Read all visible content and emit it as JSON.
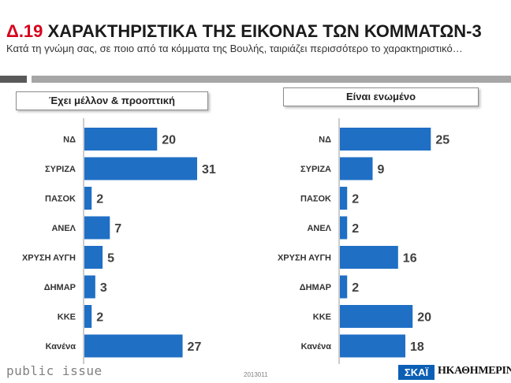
{
  "header": {
    "code": "Δ.19",
    "title": "ΧΑΡΑΚΤΗΡΙΣΤΙΚΑ ΤΗΣ ΕΙΚΟΝΑΣ ΤΩΝ ΚΟΜΜΑΤΩΝ-3",
    "subtitle": "Κατά τη γνώμη σας, σε ποιο από τα κόμματα της Βουλής, ταιριάζει περισσότερο το χαρακτηριστικό…"
  },
  "chart_data": [
    {
      "type": "bar",
      "orientation": "horizontal",
      "title": "Έχει μέλλον & προοπτική",
      "categories": [
        "ΝΔ",
        "ΣΥΡΙΖΑ",
        "ΠΑΣΟΚ",
        "ΑΝΕΛ",
        "ΧΡΥΣΗ ΑΥΓΗ",
        "ΔΗΜΑΡ",
        "ΚΚΕ",
        "Κανένα"
      ],
      "values": [
        20,
        31,
        2,
        7,
        5,
        3,
        2,
        27
      ],
      "xlim": [
        0,
        31
      ],
      "color": "#1f6fc5",
      "grid": false
    },
    {
      "type": "bar",
      "orientation": "horizontal",
      "title": "Είναι ενωμένο",
      "categories": [
        "ΝΔ",
        "ΣΥΡΙΖΑ",
        "ΠΑΣΟΚ",
        "ΑΝΕΛ",
        "ΧΡΥΣΗ ΑΥΓΗ",
        "ΔΗΜΑΡ",
        "ΚΚΕ",
        "Κανένα"
      ],
      "values": [
        25,
        9,
        2,
        2,
        16,
        2,
        20,
        18
      ],
      "xlim": [
        0,
        31
      ],
      "color": "#1f6fc5",
      "grid": false
    }
  ],
  "footer": {
    "brand": "public issue",
    "code": "2013011",
    "logo_skai": "ΣΚΑΪ",
    "logo_kathimerini": "ΗΚΑΘΗΜΕΡΙΝΗ"
  }
}
